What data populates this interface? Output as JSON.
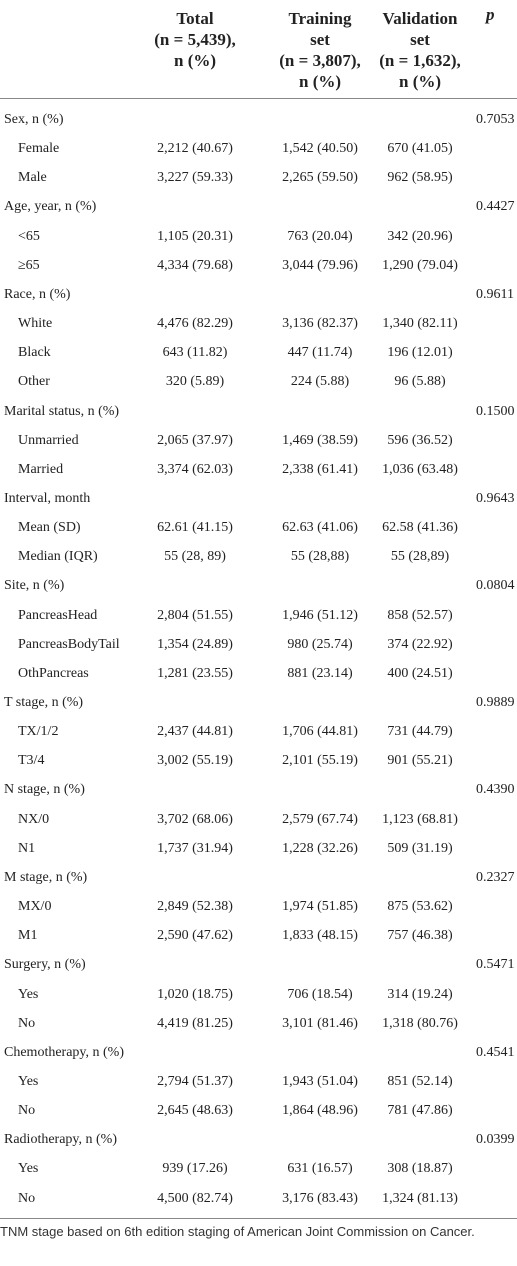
{
  "table": {
    "headers": [
      {
        "lines": [
          "Total",
          "(n = 5,439),",
          "n (%)"
        ]
      },
      {
        "lines": [
          "Training",
          "set",
          "(n = 3,807),",
          "n (%)"
        ]
      },
      {
        "lines": [
          "Validation",
          "set",
          "(n = 1,632),",
          "n (%)"
        ]
      },
      {
        "lines": [
          "p"
        ]
      }
    ],
    "groups": [
      {
        "label": "Sex, n (%)",
        "p": "0.7053",
        "rows": [
          {
            "label": "Female",
            "values": [
              "2,212 (40.67)",
              "1,542 (40.50)",
              "670 (41.05)"
            ]
          },
          {
            "label": "Male",
            "values": [
              "3,227 (59.33)",
              "2,265 (59.50)",
              "962 (58.95)"
            ]
          }
        ]
      },
      {
        "label": "Age, year, n (%)",
        "p": "0.4427",
        "rows": [
          {
            "label": "<65",
            "values": [
              "1,105 (20.31)",
              "763 (20.04)",
              "342 (20.96)"
            ]
          },
          {
            "label": "≥65",
            "values": [
              "4,334 (79.68)",
              "3,044 (79.96)",
              "1,290 (79.04)"
            ]
          }
        ]
      },
      {
        "label": "Race, n (%)",
        "p": "0.9611",
        "rows": [
          {
            "label": "White",
            "values": [
              "4,476 (82.29)",
              "3,136 (82.37)",
              "1,340 (82.11)"
            ]
          },
          {
            "label": "Black",
            "values": [
              "643 (11.82)",
              "447 (11.74)",
              "196 (12.01)"
            ]
          },
          {
            "label": "Other",
            "values": [
              "320 (5.89)",
              "224 (5.88)",
              "96 (5.88)"
            ]
          }
        ]
      },
      {
        "label": "Marital status, n (%)",
        "p": "0.1500",
        "rows": [
          {
            "label": "Unmarried",
            "values": [
              "2,065 (37.97)",
              "1,469 (38.59)",
              "596 (36.52)"
            ]
          },
          {
            "label": "Married",
            "values": [
              "3,374 (62.03)",
              "2,338 (61.41)",
              "1,036 (63.48)"
            ]
          }
        ]
      },
      {
        "label": "Interval, month",
        "p": "0.9643",
        "rows": [
          {
            "label": "Mean (SD)",
            "values": [
              "62.61 (41.15)",
              "62.63 (41.06)",
              "62.58 (41.36)"
            ]
          },
          {
            "label": "Median (IQR)",
            "values": [
              "55 (28, 89)",
              "55 (28,88)",
              "55 (28,89)"
            ]
          }
        ]
      },
      {
        "label": "Site, n (%)",
        "p": "0.0804",
        "rows": [
          {
            "label": "PancreasHead",
            "values": [
              "2,804 (51.55)",
              "1,946 (51.12)",
              "858 (52.57)"
            ]
          },
          {
            "label": "PancreasBodyTail",
            "values": [
              "1,354 (24.89)",
              "980 (25.74)",
              "374 (22.92)"
            ]
          },
          {
            "label": "OthPancreas",
            "values": [
              "1,281 (23.55)",
              "881 (23.14)",
              "400 (24.51)"
            ]
          }
        ]
      },
      {
        "label": "T stage, n (%)",
        "p": "0.9889",
        "rows": [
          {
            "label": "TX/1/2",
            "values": [
              "2,437 (44.81)",
              "1,706 (44.81)",
              "731 (44.79)"
            ]
          },
          {
            "label": "T3/4",
            "values": [
              "3,002 (55.19)",
              "2,101 (55.19)",
              "901 (55.21)"
            ]
          }
        ]
      },
      {
        "label": "N stage, n (%)",
        "p": "0.4390",
        "rows": [
          {
            "label": "NX/0",
            "values": [
              "3,702 (68.06)",
              "2,579 (67.74)",
              "1,123 (68.81)"
            ]
          },
          {
            "label": "N1",
            "values": [
              "1,737 (31.94)",
              "1,228 (32.26)",
              "509 (31.19)"
            ]
          }
        ]
      },
      {
        "label": "M stage, n (%)",
        "p": "0.2327",
        "rows": [
          {
            "label": "MX/0",
            "values": [
              "2,849 (52.38)",
              "1,974 (51.85)",
              "875 (53.62)"
            ]
          },
          {
            "label": "M1",
            "values": [
              "2,590 (47.62)",
              "1,833 (48.15)",
              "757 (46.38)"
            ]
          }
        ]
      },
      {
        "label": "Surgery, n (%)",
        "p": "0.5471",
        "rows": [
          {
            "label": "Yes",
            "values": [
              "1,020 (18.75)",
              "706 (18.54)",
              "314 (19.24)"
            ]
          },
          {
            "label": "No",
            "values": [
              "4,419 (81.25)",
              "3,101 (81.46)",
              "1,318 (80.76)"
            ]
          }
        ]
      },
      {
        "label": "Chemotherapy, n (%)",
        "p": "0.4541",
        "rows": [
          {
            "label": "Yes",
            "values": [
              "2,794 (51.37)",
              "1,943 (51.04)",
              "851 (52.14)"
            ]
          },
          {
            "label": "No",
            "values": [
              "2,645 (48.63)",
              "1,864 (48.96)",
              "781 (47.86)"
            ]
          }
        ]
      },
      {
        "label": "Radiotherapy, n (%)",
        "p": "0.0399",
        "rows": [
          {
            "label": "Yes",
            "values": [
              "939 (17.26)",
              "631 (16.57)",
              "308 (18.87)"
            ]
          },
          {
            "label": "No",
            "values": [
              "4,500 (82.74)",
              "3,176 (83.43)",
              "1,324 (81.13)"
            ]
          }
        ]
      }
    ],
    "footnote": "TNM stage based on 6th edition staging of American Joint Commission on Cancer."
  }
}
